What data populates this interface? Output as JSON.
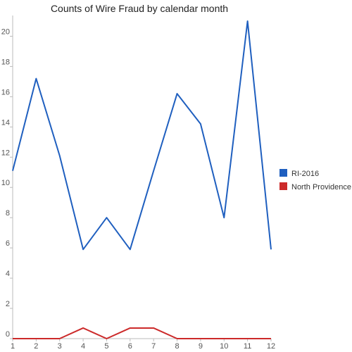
{
  "chart_data": {
    "type": "line",
    "title": "Counts of Wire Fraud by calendar month",
    "xlabel": "",
    "ylabel": "",
    "x": [
      1,
      2,
      3,
      4,
      5,
      6,
      7,
      8,
      9,
      10,
      11,
      12
    ],
    "xlim": [
      1,
      12
    ],
    "ylim": [
      0,
      21
    ],
    "yticks": [
      0,
      2,
      4,
      6,
      8,
      10,
      12,
      14,
      16,
      18,
      20
    ],
    "grid": false,
    "legend_position": "right",
    "series": [
      {
        "name": "RI-2016",
        "color": "#1f5fbf",
        "values": [
          11.1,
          17.2,
          12.1,
          5.9,
          8.0,
          5.9,
          11.1,
          16.2,
          14.2,
          8.0,
          21.0,
          5.9
        ]
      },
      {
        "name": "North Providence",
        "color": "#cc2a2a",
        "values": [
          0,
          0,
          0,
          0.7,
          0,
          0.7,
          0.7,
          0,
          0,
          0,
          0,
          0
        ]
      }
    ]
  }
}
